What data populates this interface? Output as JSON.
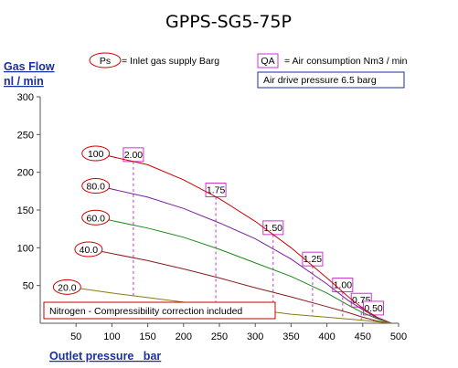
{
  "chart_data": {
    "type": "line",
    "title": "GPPS-SG5-75P",
    "ylabel_line1": "Gas Flow",
    "ylabel_line2": "nl / min",
    "xlabel": "Outlet pressure   bar",
    "xlim": [
      0,
      500
    ],
    "ylim": [
      0,
      300
    ],
    "xticks": [
      50,
      100,
      150,
      200,
      250,
      300,
      350,
      400,
      450,
      500
    ],
    "yticks": [
      50,
      100,
      150,
      200,
      250,
      300
    ],
    "legend": {
      "ps_symbol": "Ps",
      "ps_text": "= Inlet gas supply  Barg",
      "qa_symbol": "QA",
      "qa_text": "= Air consumption  Nm3 / min",
      "drive_text": "Air drive pressure  6.5 barg"
    },
    "note": "Nitrogen - Compressibility correction included",
    "series": [
      {
        "name": "100",
        "color": "#cc0000",
        "x": [
          80,
          150,
          200,
          250,
          300,
          350,
          400,
          430,
          450,
          470,
          490
        ],
        "y": [
          225,
          210,
          190,
          165,
          135,
          100,
          60,
          35,
          20,
          8,
          0
        ]
      },
      {
        "name": "80.0",
        "color": "#7a1fa2",
        "x": [
          80,
          150,
          200,
          250,
          300,
          350,
          400,
          430,
          450,
          470,
          490
        ],
        "y": [
          182,
          167,
          152,
          133,
          112,
          85,
          52,
          30,
          18,
          7,
          0
        ]
      },
      {
        "name": "60.0",
        "color": "#1a8a1a",
        "x": [
          80,
          150,
          200,
          250,
          300,
          350,
          400,
          430,
          450,
          470,
          490
        ],
        "y": [
          140,
          126,
          114,
          98,
          80,
          62,
          40,
          24,
          14,
          6,
          0
        ]
      },
      {
        "name": "40.0",
        "color": "#8b1a1a",
        "x": [
          70,
          150,
          200,
          250,
          300,
          350,
          400,
          430,
          450,
          470,
          490
        ],
        "y": [
          98,
          83,
          72,
          60,
          47,
          35,
          22,
          14,
          8,
          3,
          0
        ]
      },
      {
        "name": "20.0",
        "color": "#8b7a14",
        "x": [
          40,
          100,
          150,
          200,
          250,
          300,
          350,
          400,
          450,
          490
        ],
        "y": [
          48,
          40,
          34,
          28,
          23,
          18,
          12,
          8,
          4,
          0
        ]
      }
    ],
    "qa_markers": [
      {
        "label": "2.00",
        "x": 130
      },
      {
        "label": "1.75",
        "x": 245
      },
      {
        "label": "1.50",
        "x": 325
      },
      {
        "label": "1.25",
        "x": 380
      },
      {
        "label": "1.00",
        "x": 422
      },
      {
        "label": "0.75",
        "x": 448
      },
      {
        "label": "0.50",
        "x": 465
      }
    ]
  }
}
